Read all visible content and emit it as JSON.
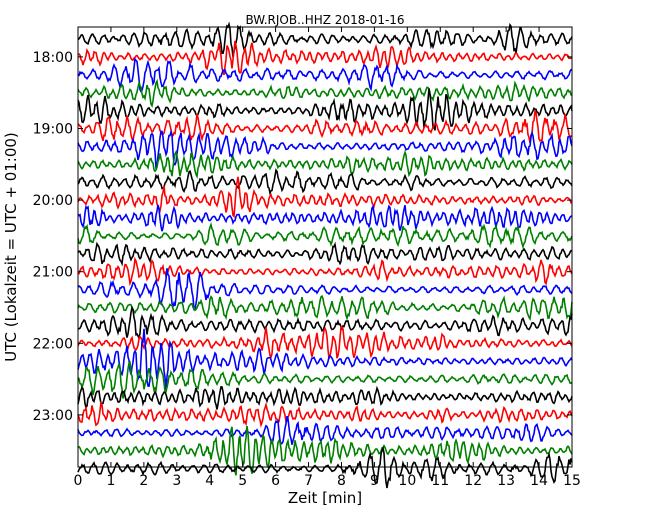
{
  "chart_data": {
    "type": "line",
    "title": "BW.RJOB..HHZ 2018-01-16",
    "xlabel": "Zeit  [min]",
    "ylabel": "UTC (Lokalzeit = UTC + 01:00)",
    "xlim": [
      0,
      15
    ],
    "x_ticks": [
      "0",
      "1",
      "2",
      "3",
      "4",
      "5",
      "6",
      "7",
      "8",
      "9",
      "10",
      "11",
      "12",
      "13",
      "14",
      "15"
    ],
    "y_ticks": [
      "18:00",
      "19:00",
      "20:00",
      "21:00",
      "22:00",
      "23:00"
    ],
    "trace_start": "17:45",
    "trace_interval_minutes": 15,
    "trace_count": 25,
    "trace_colors": [
      "#000000",
      "#ff0000",
      "#0000ff",
      "#008000"
    ],
    "grid": false,
    "legend": "none"
  }
}
